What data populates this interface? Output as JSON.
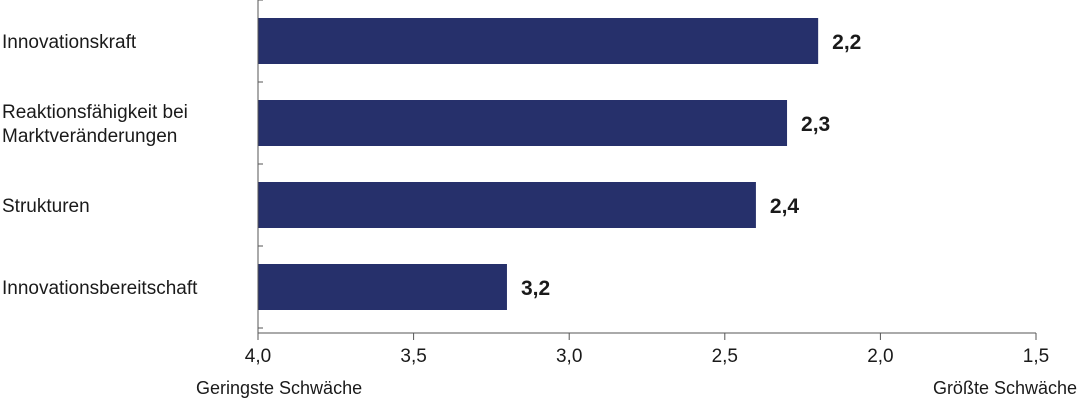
{
  "chart_data": {
    "type": "bar",
    "orientation": "horizontal",
    "categories": [
      [
        "Innovationskraft"
      ],
      [
        "Reaktionsfähigkeit bei",
        "Marktveränderungen"
      ],
      [
        "Strukturen"
      ],
      [
        "Innovationsbereitschaft"
      ]
    ],
    "values": [
      2.2,
      2.3,
      2.4,
      3.2
    ],
    "value_labels": [
      "2,2",
      "2,3",
      "2,4",
      "3,2"
    ],
    "xlim": [
      4.0,
      1.5
    ],
    "x_reversed": true,
    "ticks": [
      4.0,
      3.5,
      3.0,
      2.5,
      2.0,
      1.5
    ],
    "tick_labels": [
      "4,0",
      "3,5",
      "3,0",
      "2,5",
      "2,0",
      "1,5"
    ],
    "axis_end_labels": {
      "left": "Geringste Schwäche",
      "right": "Größte Schwäche"
    },
    "bar_color": "#26306b",
    "grid": false,
    "legend": "none"
  }
}
